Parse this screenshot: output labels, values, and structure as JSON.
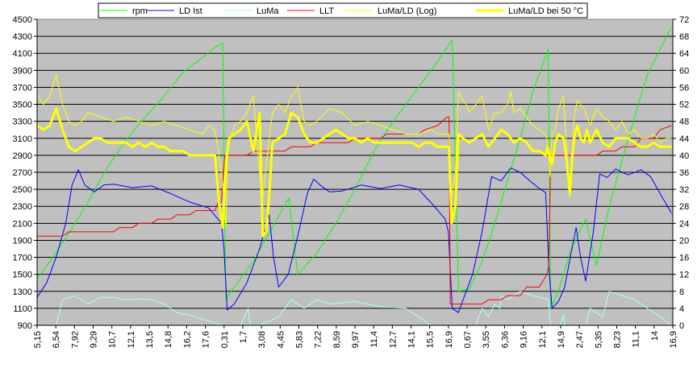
{
  "chart_data": {
    "type": "line",
    "title": "",
    "xlabel": "",
    "ylabel": "",
    "y_left_ticks": [
      "900",
      "1100",
      "1300",
      "1500",
      "1700",
      "1900",
      "2100",
      "2300",
      "2500",
      "2700",
      "2900",
      "3100",
      "3300",
      "3500",
      "3700",
      "3900",
      "4100",
      "4300",
      "4500"
    ],
    "y_right_ticks": [
      "0",
      "4",
      "8",
      "12",
      "16",
      "20",
      "24",
      "28",
      "32",
      "36",
      "40",
      "44",
      "48",
      "52",
      "56",
      "60",
      "64",
      "68",
      "72"
    ],
    "ylim_left": [
      900,
      4500
    ],
    "ylim_right": [
      0,
      72
    ],
    "x_tick_labels": [
      "5,15",
      "6,54",
      "7,92",
      "9,29",
      "10,7",
      "12,1",
      "13,5",
      "14,8",
      "16,2",
      "17,6",
      "0,31",
      "1,7",
      "3,08",
      "4,45",
      "5,83",
      "7,22",
      "8,59",
      "9,97",
      "11,4",
      "12,7",
      "14,1",
      "15,5",
      "16,9",
      "0,67",
      "3,55",
      "6,36",
      "9,16",
      "12,1",
      "14,9",
      "2,47",
      "5,35",
      "8,23",
      "11,1",
      "14",
      "16,9"
    ],
    "x_range": [
      0,
      100
    ],
    "grid": true,
    "legend_position": "top",
    "plot_background": "#c0c0c0",
    "series": [
      {
        "name": "rpm",
        "color": "#00ff00",
        "axis": "left",
        "width": 1,
        "x": [
          0,
          2,
          5,
          8,
          11,
          14,
          17,
          20,
          23,
          26,
          28,
          29.2,
          29.7,
          31,
          34,
          37,
          39.6,
          41,
          44,
          47,
          50,
          53,
          56,
          59,
          62,
          64.8,
          65.3,
          66.3,
          68,
          70,
          72,
          74,
          76,
          78,
          80.4,
          80.8,
          82,
          84,
          86.3,
          88,
          90,
          93,
          96,
          99.7
        ],
        "y": [
          1450,
          1650,
          1980,
          2350,
          2750,
          3080,
          3350,
          3600,
          3880,
          4050,
          4170,
          4220,
          1200,
          1350,
          1650,
          2050,
          2400,
          1500,
          1750,
          2100,
          2500,
          2950,
          3300,
          3600,
          3900,
          4200,
          4260,
          1300,
          1330,
          1650,
          2100,
          2600,
          3100,
          3650,
          4150,
          1100,
          1300,
          1800,
          2150,
          1600,
          2300,
          3100,
          3850,
          4400
        ]
      },
      {
        "name": "LD Ist",
        "color": "#0000ff",
        "axis": "left",
        "width": 1,
        "x": [
          0,
          1.5,
          3,
          4.5,
          5.5,
          6.5,
          7.5,
          9,
          10.5,
          12,
          15,
          18,
          21,
          24,
          27,
          29,
          29.4,
          29.9,
          31,
          33,
          35,
          36.5,
          37.2,
          38,
          39.5,
          41,
          42.5,
          43.5,
          44.5,
          46,
          48,
          51,
          54,
          57,
          60,
          62,
          64.2,
          64.7,
          65.3,
          66.3,
          67,
          68.5,
          70,
          71.5,
          73,
          74.5,
          76,
          78,
          79.2,
          80,
          80.5,
          81,
          82,
          83,
          84,
          84.8,
          85.5,
          86.3,
          87.5,
          88.5,
          89.7,
          91,
          92,
          93,
          95,
          96.5,
          98,
          99.8
        ],
        "y": [
          1230,
          1400,
          1700,
          2100,
          2550,
          2730,
          2550,
          2470,
          2550,
          2560,
          2520,
          2540,
          2450,
          2350,
          2280,
          2100,
          1800,
          1080,
          1150,
          1400,
          1800,
          2200,
          1700,
          1350,
          1500,
          1950,
          2450,
          2620,
          2550,
          2470,
          2480,
          2550,
          2510,
          2550,
          2500,
          2340,
          2150,
          2000,
          1100,
          1050,
          1200,
          1500,
          2000,
          2650,
          2600,
          2750,
          2700,
          2570,
          2500,
          2460,
          1600,
          1100,
          1180,
          1350,
          1750,
          2050,
          1700,
          1420,
          2000,
          2680,
          2640,
          2740,
          2700,
          2670,
          2730,
          2650,
          2450,
          2220
        ]
      },
      {
        "name": "LuMa",
        "color": "#aaffff",
        "axis": "left",
        "width": 1,
        "x": [
          0,
          2,
          3,
          4,
          6,
          8,
          10,
          12,
          14,
          16,
          18,
          20,
          22,
          24,
          27,
          29,
          29.5,
          30.5,
          32,
          33.2,
          33.5,
          33.8,
          35,
          38,
          40,
          42,
          44,
          46,
          50,
          54,
          58,
          62,
          64.5,
          65,
          66,
          68,
          69,
          70,
          71,
          72,
          72.8,
          73,
          74,
          76,
          78,
          80.4,
          80.8,
          82.3,
          82.8,
          83,
          85,
          86.3,
          87,
          88,
          89,
          90,
          92,
          94,
          96,
          98,
          99.7
        ],
        "y": [
          900,
          900,
          900,
          1200,
          1250,
          1150,
          1230,
          1230,
          1200,
          1210,
          1200,
          1150,
          1050,
          1020,
          950,
          900,
          900,
          900,
          900,
          1100,
          900,
          900,
          900,
          1000,
          1200,
          1100,
          1200,
          1150,
          1180,
          1120,
          1100,
          900,
          900,
          900,
          900,
          900,
          900,
          1100,
          1000,
          1150,
          1100,
          1250,
          1200,
          1300,
          1250,
          1200,
          900,
          900,
          1020,
          900,
          900,
          900,
          1100,
          1050,
          1000,
          1300,
          1250,
          1200,
          1100,
          1000,
          900
        ]
      },
      {
        "name": "LLT",
        "color": "#ff0000",
        "axis": "left",
        "width": 1,
        "x": [
          0,
          4,
          5,
          12,
          13,
          15,
          16,
          18,
          19,
          21,
          22,
          24,
          25,
          28,
          28.5,
          29,
          29.5,
          33,
          34,
          39,
          40,
          43,
          44,
          49,
          50,
          54,
          55,
          60,
          61,
          63,
          64.5,
          64.8,
          65,
          66.3,
          70,
          71,
          73,
          74,
          76,
          77,
          79,
          80.2,
          80.5,
          80.8,
          81,
          88,
          89,
          91,
          92,
          94,
          95,
          97,
          98,
          99.8
        ],
        "y": [
          1950,
          1950,
          2000,
          2000,
          2050,
          2050,
          2100,
          2100,
          2150,
          2150,
          2200,
          2200,
          2250,
          2250,
          2350,
          2350,
          2900,
          2900,
          2950,
          2950,
          3000,
          3000,
          3050,
          3050,
          3100,
          3100,
          3150,
          3150,
          3200,
          3250,
          3350,
          3350,
          1150,
          1150,
          1150,
          1200,
          1200,
          1250,
          1250,
          1350,
          1350,
          1500,
          1600,
          2900,
          2900,
          2900,
          2950,
          2950,
          3000,
          3000,
          3100,
          3100,
          3200,
          3250
        ]
      },
      {
        "name": "LuMa/LD (Log)",
        "color": "#ffff00",
        "axis": "right",
        "width": 1,
        "x": [
          0,
          1,
          2,
          3,
          4,
          5,
          6,
          7,
          8,
          10,
          12,
          14,
          16,
          18,
          20,
          22,
          24,
          26,
          27,
          28,
          28.6,
          29.2,
          29.7,
          30,
          31,
          32,
          33,
          34,
          35,
          35.5,
          36,
          37,
          38,
          39,
          40,
          41,
          42,
          43,
          44,
          46,
          48,
          50,
          52,
          54,
          56,
          58,
          60,
          62,
          63,
          64,
          64.5,
          64.8,
          65.2,
          65.8,
          66.3,
          67,
          67.5,
          68,
          69,
          70,
          71,
          72,
          73,
          74,
          74.5,
          75,
          76,
          77,
          78,
          79,
          80,
          80.3,
          80.7,
          81,
          81.5,
          82,
          82.8,
          83.3,
          83.8,
          84,
          84.5,
          85,
          86,
          87,
          88,
          89,
          90,
          91,
          92,
          93,
          94,
          95,
          96,
          97,
          98,
          99,
          99.8
        ],
        "y": [
          54,
          52,
          54,
          59,
          52,
          48,
          47,
          48,
          50,
          49,
          48,
          49,
          48,
          47,
          48,
          47,
          46,
          45,
          47,
          46,
          40,
          33,
          23,
          42,
          47,
          48,
          50,
          54,
          36,
          30,
          37,
          50,
          52,
          50,
          54,
          56,
          48,
          47,
          48,
          51,
          50,
          47,
          48,
          47,
          46,
          45,
          45,
          46,
          45,
          45,
          45,
          45,
          30,
          36,
          55,
          53,
          52,
          50,
          52,
          54,
          46,
          50,
          50,
          52,
          55,
          50,
          51,
          49,
          47,
          46,
          45,
          43,
          35,
          45,
          46,
          51,
          54,
          42,
          30,
          36,
          49,
          53,
          51,
          47,
          51,
          49,
          48,
          46,
          48,
          45,
          46,
          44,
          44,
          45,
          43,
          44,
          44
        ]
      },
      {
        "name": "LuMa/LD bei 50 °C",
        "color": "#ffff00",
        "axis": "right",
        "width": 3,
        "x": [
          0,
          1,
          2,
          3,
          4,
          5,
          6,
          7,
          8,
          9,
          10,
          11,
          12,
          13,
          14,
          15,
          16,
          17,
          18,
          19,
          20,
          21,
          22,
          23,
          24,
          25,
          26,
          27,
          28,
          28.6,
          29.2,
          29.7,
          30.2,
          31,
          32,
          33,
          34,
          35,
          35.5,
          36,
          36.5,
          37,
          38,
          39,
          40,
          41,
          42,
          43,
          44,
          45,
          46,
          47,
          48,
          49,
          50,
          51,
          52,
          53,
          54,
          55,
          56,
          57,
          58,
          59,
          60,
          61,
          62,
          63,
          64,
          64.5,
          64.8,
          65.2,
          65.8,
          66.3,
          67,
          68,
          69,
          70,
          71,
          72,
          73,
          74,
          75,
          76,
          77,
          78,
          79,
          80,
          80.3,
          80.7,
          81,
          81.5,
          82,
          82.8,
          83.3,
          83.8,
          84.2,
          84.6,
          85,
          85.5,
          86,
          86.5,
          87,
          88,
          89,
          90,
          91,
          92,
          93,
          94,
          95,
          96,
          97,
          98,
          99,
          99.8
        ],
        "y": [
          47,
          46,
          47,
          51,
          46,
          42,
          41,
          42,
          43,
          44,
          44,
          43,
          43,
          43,
          43,
          42,
          43,
          42,
          43,
          42,
          42,
          41,
          41,
          41,
          40,
          40,
          40,
          40,
          40,
          29,
          23,
          38,
          44,
          45,
          46,
          48,
          41,
          50,
          21,
          22,
          30,
          43,
          44,
          45,
          50,
          49,
          45,
          43,
          43,
          44,
          45,
          46,
          45,
          44,
          44,
          43,
          44,
          43,
          43,
          43,
          43,
          43,
          43,
          43,
          42,
          43,
          43,
          42,
          42,
          42,
          42,
          24,
          28,
          45,
          44,
          43,
          44,
          45,
          42,
          44,
          46,
          45,
          43,
          44,
          43,
          41,
          41,
          40,
          42,
          39,
          38,
          43,
          45,
          44,
          39,
          31,
          40,
          45,
          47,
          44,
          43,
          46,
          43,
          46,
          43,
          42,
          44,
          44,
          44,
          43,
          42,
          42,
          43,
          42,
          42,
          42
        ]
      }
    ]
  }
}
